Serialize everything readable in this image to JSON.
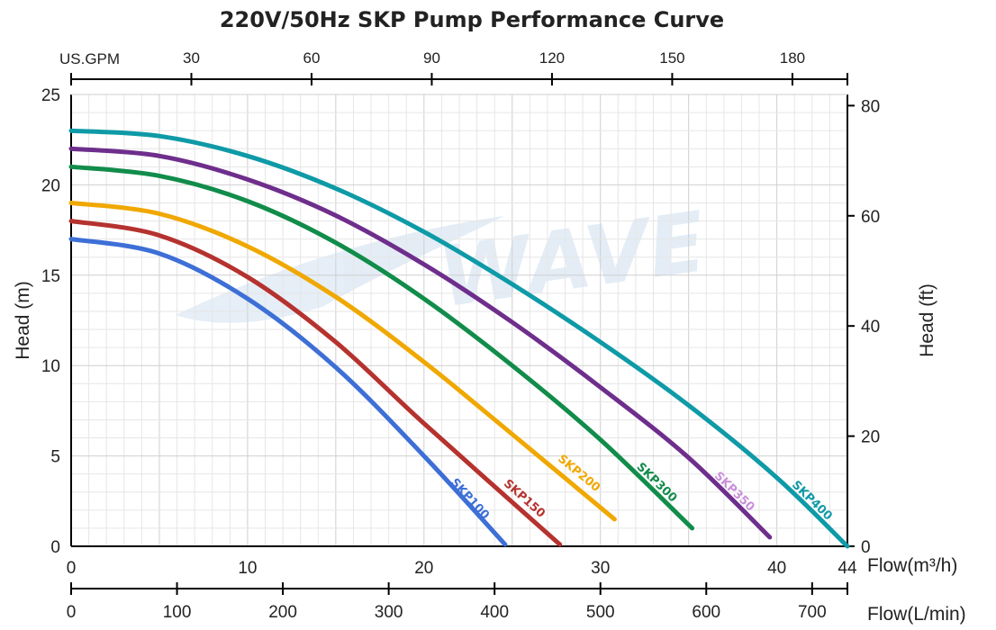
{
  "chart_data": {
    "type": "line",
    "title": "220V/50Hz SKP Pump Performance Curve",
    "xlabel": "Flow(m³/h)",
    "ylabel_left": "Head (m)",
    "ylabel_right": "Head (ft)",
    "x_secondary_label": "Flow(L/min)",
    "x_top_label": "US.GPM",
    "xlim": [
      0,
      44
    ],
    "ylim": [
      0,
      25
    ],
    "x_ticks": [
      0,
      10,
      20,
      30,
      40,
      44
    ],
    "y_ticks": [
      0,
      5,
      10,
      15,
      20,
      25
    ],
    "y_right_ticks": [
      0,
      20,
      40,
      60,
      80
    ],
    "x_lpm_ticks": [
      0,
      100,
      200,
      300,
      400,
      500,
      600,
      700
    ],
    "x_gpm_ticks": [
      30,
      60,
      90,
      120,
      150,
      180
    ],
    "grid": true,
    "watermark": "WAVE",
    "series": [
      {
        "name": "SKP100",
        "color": "#3d6fd6",
        "x": [
          0,
          5,
          10,
          15,
          20,
          24.6
        ],
        "y": [
          17,
          16.2,
          13.7,
          9.9,
          5.0,
          0.1
        ]
      },
      {
        "name": "SKP150",
        "color": "#b5322e",
        "x": [
          0,
          5,
          10,
          15,
          20,
          27.7
        ],
        "y": [
          18,
          17.2,
          14.9,
          11.3,
          6.8,
          0.1
        ]
      },
      {
        "name": "SKP200",
        "color": "#f0a800",
        "x": [
          0,
          5,
          10,
          15,
          20,
          25,
          30.8
        ],
        "y": [
          19,
          18.4,
          16.6,
          13.8,
          10.2,
          6.2,
          1.5
        ]
      },
      {
        "name": "SKP300",
        "color": "#118c4a",
        "x": [
          0,
          5,
          10,
          15,
          20,
          25,
          30,
          35.2
        ],
        "y": [
          21,
          20.5,
          19.1,
          16.8,
          13.7,
          10.0,
          5.9,
          1.0
        ]
      },
      {
        "name": "SKP350",
        "color": "#6e2e8c",
        "x": [
          0,
          5,
          10,
          15,
          20,
          25,
          30,
          35,
          39.6
        ],
        "y": [
          22,
          21.6,
          20.3,
          18.3,
          15.6,
          12.4,
          8.8,
          4.9,
          0.5
        ]
      },
      {
        "name": "SKP400",
        "color": "#0e9aa7",
        "x": [
          0,
          5,
          10,
          15,
          20,
          25,
          30,
          35,
          40,
          44
        ],
        "y": [
          23,
          22.7,
          21.6,
          19.8,
          17.4,
          14.5,
          11.3,
          7.8,
          3.8,
          0.0
        ]
      }
    ],
    "curve_label_colors": {
      "SKP350": "#c98fd9"
    }
  }
}
